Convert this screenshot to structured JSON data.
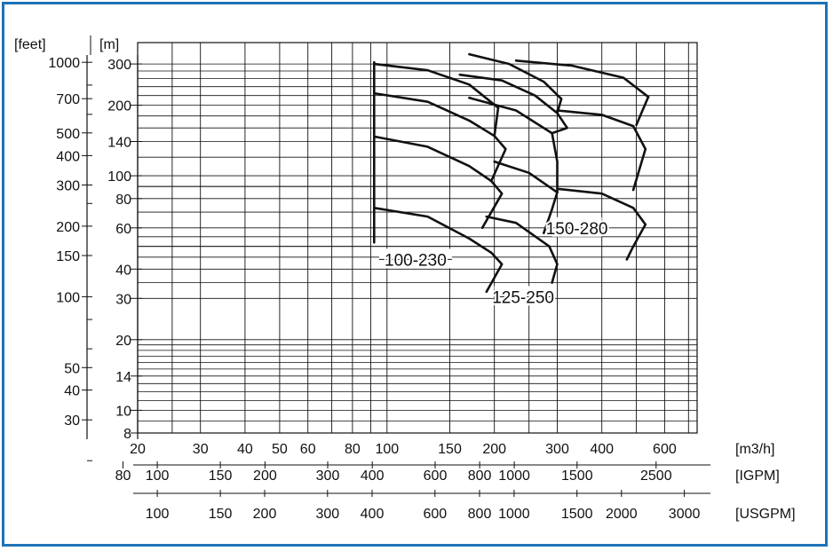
{
  "chart_data": {
    "type": "line",
    "x_unit_label": "[m3/h]",
    "y_unit_label_left": "[feet]",
    "y_unit_label_right": "[m]",
    "x_scale": "log",
    "y_scale": "log",
    "xlim": [
      20,
      740
    ],
    "ylim": [
      8,
      370
    ],
    "x_ticks": [
      20,
      30,
      40,
      50,
      60,
      80,
      100,
      150,
      200,
      300,
      400,
      600
    ],
    "x_tick_labels": [
      "20",
      "30",
      "40",
      "50",
      "60",
      "80",
      "100",
      "150",
      "200",
      "300",
      "400",
      "600"
    ],
    "y_ticks_m": [
      8,
      10,
      14,
      20,
      30,
      40,
      60,
      80,
      100,
      140,
      200,
      300
    ],
    "y_tick_labels_m": [
      "8",
      "10",
      "14",
      "20",
      "30",
      "40",
      "60",
      "80",
      "100",
      "140",
      "200",
      "300"
    ],
    "feet_ticks": [
      {
        "label": "1000",
        "m": 304.8
      },
      {
        "label": "700",
        "m": 213.4
      },
      {
        "label": "500",
        "m": 152.4
      },
      {
        "label": "400",
        "m": 121.9
      },
      {
        "label": "300",
        "m": 91.4
      },
      {
        "label": "200",
        "m": 61.0
      },
      {
        "label": "150",
        "m": 45.7
      },
      {
        "label": "100",
        "m": 30.5
      },
      {
        "label": "50",
        "m": 15.2
      },
      {
        "label": "40",
        "m": 12.2
      },
      {
        "label": "30",
        "m": 9.1
      }
    ],
    "igpm_axis": {
      "unit_label": "[IGPM]",
      "ticks": [
        {
          "label": "80",
          "m3h": 18.2
        },
        {
          "label": "100",
          "m3h": 22.7
        },
        {
          "label": "150",
          "m3h": 34.1
        },
        {
          "label": "200",
          "m3h": 45.5
        },
        {
          "label": "300",
          "m3h": 68.2
        },
        {
          "label": "400",
          "m3h": 90.9
        },
        {
          "label": "600",
          "m3h": 136.4
        },
        {
          "label": "800",
          "m3h": 181.8
        },
        {
          "label": "1000",
          "m3h": 227.3
        },
        {
          "label": "1500",
          "m3h": 341
        },
        {
          "label": "2500",
          "m3h": 568
        }
      ]
    },
    "usgpm_axis": {
      "unit_label": "[USGPM]",
      "ticks": [
        {
          "label": "100",
          "m3h": 22.7
        },
        {
          "label": "150",
          "m3h": 34.1
        },
        {
          "label": "200",
          "m3h": 45.4
        },
        {
          "label": "300",
          "m3h": 68.1
        },
        {
          "label": "400",
          "m3h": 90.8
        },
        {
          "label": "600",
          "m3h": 136.3
        },
        {
          "label": "800",
          "m3h": 181.7
        },
        {
          "label": "1000",
          "m3h": 227.1
        },
        {
          "label": "1500",
          "m3h": 340.7
        },
        {
          "label": "2000",
          "m3h": 454.2
        },
        {
          "label": "3000",
          "m3h": 681.4
        }
      ]
    },
    "pump_labels": [
      {
        "label": "100-230",
        "leader_q": [
          95,
          152
        ],
        "leader_h": 44
      },
      {
        "label": "125-250",
        "leader_q": [
          200,
          290
        ],
        "leader_h": 30.5
      },
      {
        "label": "150-280",
        "leader_q": [
          290,
          400
        ],
        "leader_h": 60
      }
    ],
    "series": [
      {
        "points": [
          [
            92,
            300
          ],
          [
            130,
            282
          ],
          [
            170,
            245
          ],
          [
            205,
            195
          ]
        ]
      },
      {
        "points": [
          [
            92,
            225
          ],
          [
            130,
            207
          ],
          [
            170,
            172
          ],
          [
            200,
            148
          ]
        ]
      },
      {
        "points": [
          [
            92,
            147
          ],
          [
            130,
            133
          ],
          [
            170,
            110
          ],
          [
            196,
            95
          ]
        ]
      },
      {
        "points": [
          [
            92,
            73
          ],
          [
            130,
            67
          ],
          [
            170,
            54
          ],
          [
            196,
            47
          ]
        ]
      },
      {
        "points": [
          [
            92,
            305
          ],
          [
            92,
            52
          ]
        ]
      },
      {
        "points": [
          [
            205,
            195
          ],
          [
            200,
            148
          ]
        ]
      },
      {
        "points": [
          [
            200,
            148
          ],
          [
            215,
            130
          ],
          [
            196,
            95
          ]
        ]
      },
      {
        "points": [
          [
            196,
            95
          ],
          [
            210,
            84
          ],
          [
            185,
            60
          ]
        ]
      },
      {
        "points": [
          [
            196,
            47
          ],
          [
            210,
            42
          ],
          [
            190,
            32
          ]
        ]
      },
      {
        "points": [
          [
            170,
            330
          ],
          [
            220,
            300
          ],
          [
            275,
            252
          ],
          [
            308,
            213
          ]
        ]
      },
      {
        "points": [
          [
            160,
            270
          ],
          [
            210,
            255
          ],
          [
            260,
            220
          ],
          [
            300,
            185
          ]
        ]
      },
      {
        "points": [
          [
            170,
            215
          ],
          [
            230,
            190
          ],
          [
            290,
            152
          ]
        ]
      },
      {
        "points": [
          [
            200,
            115
          ],
          [
            250,
            103
          ],
          [
            300,
            85
          ]
        ]
      },
      {
        "points": [
          [
            190,
            67
          ],
          [
            230,
            63
          ],
          [
            285,
            50
          ]
        ]
      },
      {
        "points": [
          [
            308,
            213
          ],
          [
            300,
            185
          ]
        ]
      },
      {
        "points": [
          [
            300,
            185
          ],
          [
            320,
            160
          ],
          [
            290,
            152
          ]
        ]
      },
      {
        "points": [
          [
            290,
            152
          ],
          [
            300,
            115
          ],
          [
            300,
            85
          ]
        ]
      },
      {
        "points": [
          [
            300,
            85
          ],
          [
            290,
            72
          ],
          [
            275,
            57
          ]
        ]
      },
      {
        "points": [
          [
            285,
            50
          ],
          [
            300,
            42
          ],
          [
            290,
            35
          ]
        ]
      },
      {
        "points": [
          [
            230,
            310
          ],
          [
            330,
            295
          ],
          [
            460,
            262
          ],
          [
            540,
            217
          ]
        ]
      },
      {
        "points": [
          [
            300,
            190
          ],
          [
            400,
            182
          ],
          [
            490,
            163
          ],
          [
            530,
            130
          ]
        ]
      },
      {
        "points": [
          [
            300,
            88
          ],
          [
            400,
            84
          ],
          [
            490,
            73
          ],
          [
            530,
            62
          ]
        ]
      },
      {
        "points": [
          [
            540,
            217
          ],
          [
            500,
            165
          ]
        ]
      },
      {
        "points": [
          [
            530,
            130
          ],
          [
            490,
            87
          ]
        ]
      },
      {
        "points": [
          [
            530,
            62
          ],
          [
            490,
            50
          ],
          [
            470,
            44
          ]
        ]
      }
    ]
  }
}
